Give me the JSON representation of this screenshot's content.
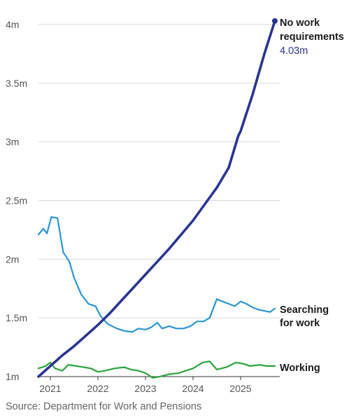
{
  "chart_data": {
    "type": "line",
    "title": "",
    "xlabel": "",
    "ylabel": "",
    "ylim": [
      1.0,
      4.0
    ],
    "xlim": [
      2020.75,
      2025.75
    ],
    "y_ticks": [
      {
        "value": 1.0,
        "label": "1m"
      },
      {
        "value": 1.5,
        "label": "1.5m"
      },
      {
        "value": 2.0,
        "label": "2m"
      },
      {
        "value": 2.5,
        "label": "2.5m"
      },
      {
        "value": 3.0,
        "label": "3m"
      },
      {
        "value": 3.5,
        "label": "3.5m"
      },
      {
        "value": 4.0,
        "label": "4m"
      }
    ],
    "x_ticks": [
      {
        "value": 2021,
        "label": "2021"
      },
      {
        "value": 2022,
        "label": "2022"
      },
      {
        "value": 2023,
        "label": "2023"
      },
      {
        "value": 2024,
        "label": "2024"
      },
      {
        "value": 2025,
        "label": "2025"
      }
    ],
    "grid": true,
    "series": [
      {
        "key": "no_work",
        "color": "#2a3590",
        "label_lines": [
          "No work",
          "requirements"
        ],
        "end_value_label": "4.03m",
        "end_marker": true,
        "points": [
          [
            2020.75,
            1.0
          ],
          [
            2021.0,
            1.09
          ],
          [
            2021.25,
            1.18
          ],
          [
            2021.5,
            1.26
          ],
          [
            2021.75,
            1.35
          ],
          [
            2022.0,
            1.44
          ],
          [
            2022.25,
            1.54
          ],
          [
            2022.5,
            1.65
          ],
          [
            2022.75,
            1.76
          ],
          [
            2023.0,
            1.87
          ],
          [
            2023.25,
            1.98
          ],
          [
            2023.5,
            2.09
          ],
          [
            2023.75,
            2.21
          ],
          [
            2024.0,
            2.33
          ],
          [
            2024.25,
            2.47
          ],
          [
            2024.5,
            2.61
          ],
          [
            2024.75,
            2.78
          ],
          [
            2024.95,
            3.05
          ],
          [
            2025.0,
            3.09
          ],
          [
            2025.25,
            3.4
          ],
          [
            2025.5,
            3.75
          ],
          [
            2025.72,
            4.03
          ]
        ]
      },
      {
        "key": "searching",
        "color": "#2a95d6",
        "label_lines": [
          "Searching",
          "for work"
        ],
        "points": [
          [
            2020.75,
            2.21
          ],
          [
            2020.85,
            2.26
          ],
          [
            2020.93,
            2.22
          ],
          [
            2021.02,
            2.36
          ],
          [
            2021.15,
            2.35
          ],
          [
            2021.27,
            2.06
          ],
          [
            2021.4,
            1.98
          ],
          [
            2021.5,
            1.84
          ],
          [
            2021.65,
            1.7
          ],
          [
            2021.8,
            1.62
          ],
          [
            2021.95,
            1.6
          ],
          [
            2022.05,
            1.52
          ],
          [
            2022.2,
            1.45
          ],
          [
            2022.4,
            1.41
          ],
          [
            2022.55,
            1.39
          ],
          [
            2022.72,
            1.38
          ],
          [
            2022.85,
            1.41
          ],
          [
            2023.0,
            1.4
          ],
          [
            2023.12,
            1.42
          ],
          [
            2023.25,
            1.46
          ],
          [
            2023.35,
            1.41
          ],
          [
            2023.5,
            1.43
          ],
          [
            2023.65,
            1.41
          ],
          [
            2023.8,
            1.41
          ],
          [
            2023.95,
            1.43
          ],
          [
            2024.08,
            1.47
          ],
          [
            2024.22,
            1.47
          ],
          [
            2024.35,
            1.5
          ],
          [
            2024.5,
            1.66
          ],
          [
            2024.62,
            1.64
          ],
          [
            2024.75,
            1.62
          ],
          [
            2024.88,
            1.6
          ],
          [
            2025.0,
            1.64
          ],
          [
            2025.12,
            1.62
          ],
          [
            2025.25,
            1.59
          ],
          [
            2025.38,
            1.57
          ],
          [
            2025.5,
            1.56
          ],
          [
            2025.62,
            1.55
          ],
          [
            2025.72,
            1.58
          ]
        ]
      },
      {
        "key": "working",
        "color": "#2aa43c",
        "label_lines": [
          "Working"
        ],
        "points": [
          [
            2020.75,
            1.07
          ],
          [
            2020.9,
            1.09
          ],
          [
            2021.0,
            1.12
          ],
          [
            2021.1,
            1.07
          ],
          [
            2021.25,
            1.05
          ],
          [
            2021.38,
            1.1
          ],
          [
            2021.55,
            1.09
          ],
          [
            2021.7,
            1.08
          ],
          [
            2021.85,
            1.07
          ],
          [
            2022.0,
            1.04
          ],
          [
            2022.15,
            1.05
          ],
          [
            2022.35,
            1.07
          ],
          [
            2022.55,
            1.08
          ],
          [
            2022.7,
            1.06
          ],
          [
            2022.85,
            1.05
          ],
          [
            2023.0,
            1.03
          ],
          [
            2023.15,
            0.99
          ],
          [
            2023.3,
            1.0
          ],
          [
            2023.5,
            1.02
          ],
          [
            2023.7,
            1.03
          ],
          [
            2023.85,
            1.05
          ],
          [
            2024.0,
            1.07
          ],
          [
            2024.2,
            1.12
          ],
          [
            2024.35,
            1.13
          ],
          [
            2024.5,
            1.06
          ],
          [
            2024.7,
            1.08
          ],
          [
            2024.9,
            1.12
          ],
          [
            2025.05,
            1.11
          ],
          [
            2025.2,
            1.09
          ],
          [
            2025.4,
            1.1
          ],
          [
            2025.55,
            1.09
          ],
          [
            2025.72,
            1.09
          ]
        ]
      }
    ],
    "source": "Source: Department for Work and Pensions"
  }
}
